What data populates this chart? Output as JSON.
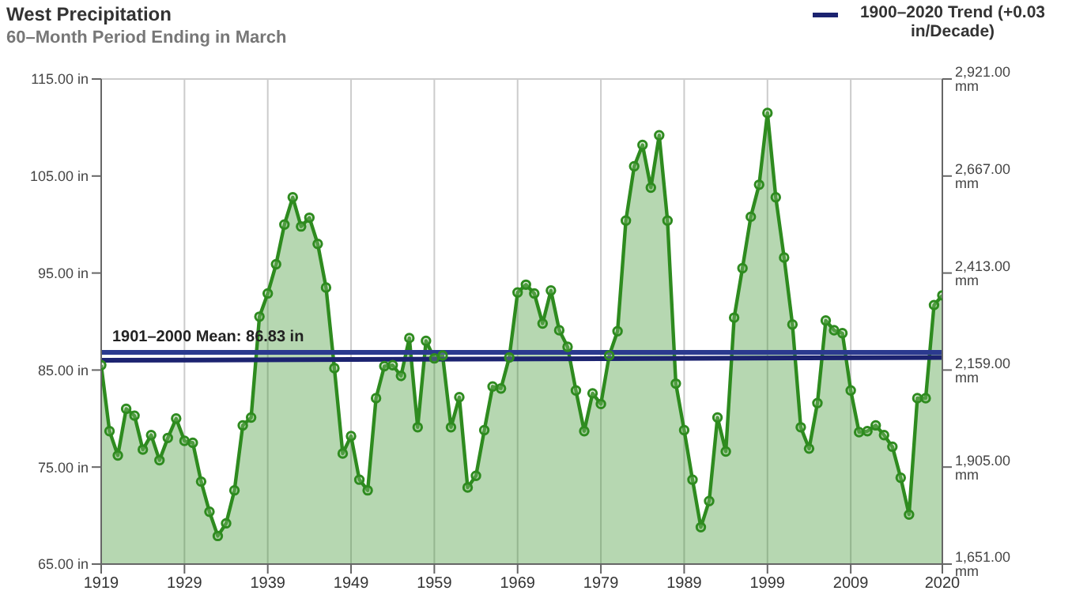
{
  "chart_data": {
    "type": "area",
    "title": "West Precipitation",
    "subtitle": "60–Month Period Ending in March",
    "x": [
      1919,
      1920,
      1921,
      1922,
      1923,
      1924,
      1925,
      1926,
      1927,
      1928,
      1929,
      1930,
      1931,
      1932,
      1933,
      1934,
      1935,
      1936,
      1937,
      1938,
      1939,
      1940,
      1941,
      1942,
      1943,
      1944,
      1945,
      1946,
      1947,
      1948,
      1949,
      1950,
      1951,
      1952,
      1953,
      1954,
      1955,
      1956,
      1957,
      1958,
      1959,
      1960,
      1961,
      1962,
      1963,
      1964,
      1965,
      1966,
      1967,
      1968,
      1969,
      1970,
      1971,
      1972,
      1973,
      1974,
      1975,
      1976,
      1977,
      1978,
      1979,
      1980,
      1981,
      1982,
      1983,
      1984,
      1985,
      1986,
      1987,
      1988,
      1989,
      1990,
      1991,
      1992,
      1993,
      1994,
      1995,
      1996,
      1997,
      1998,
      1999,
      2000,
      2001,
      2002,
      2003,
      2004,
      2005,
      2006,
      2007,
      2008,
      2009,
      2010,
      2011,
      2012,
      2013,
      2014,
      2015,
      2016,
      2017,
      2018,
      2019,
      2020
    ],
    "series": [
      {
        "color": "#2e8b1f",
        "marker": "circle",
        "values": [
          85.5,
          78.7,
          76.2,
          81,
          80.3,
          76.8,
          78.3,
          75.7,
          78,
          80,
          77.7,
          77.5,
          73.5,
          70.4,
          67.9,
          69.2,
          72.6,
          79.3,
          80.1,
          90.5,
          92.9,
          95.9,
          100,
          102.8,
          99.8,
          100.7,
          98,
          93.5,
          85.2,
          76.4,
          78.2,
          73.7,
          72.6,
          82.1,
          85.4,
          85.5,
          84.4,
          88.3,
          79.1,
          88,
          86.2,
          86.5,
          79.1,
          82.2,
          72.9,
          74.1,
          78.8,
          83.3,
          83.1,
          86.3,
          93,
          93.8,
          92.9,
          89.8,
          93.2,
          89.1,
          87.4,
          82.9,
          78.7,
          82.6,
          81.5,
          86.5,
          89,
          100.4,
          106,
          108.2,
          103.8,
          109.2,
          100.4,
          83.6,
          78.8,
          73.7,
          68.8,
          71.5,
          80.1,
          76.6,
          90.4,
          95.5,
          100.8,
          104.1,
          111.5,
          102.8,
          96.6,
          89.7,
          79.1,
          76.9,
          81.6,
          90.1,
          89.1,
          88.8,
          82.9,
          78.6,
          78.7,
          79.3,
          78.3,
          77.1,
          73.9,
          70.1,
          82.1,
          82.1,
          91.7,
          92.7
        ]
      },
      {
        "type": "line",
        "name": "1900–2020 Trend (+0.03 in/Decade)",
        "color": "#1c2370",
        "marker": "none",
        "x": [
          1919,
          2020
        ],
        "values": [
          86.0,
          86.3
        ]
      }
    ],
    "xlim": [
      1919,
      2020
    ],
    "xticks": [
      1919,
      1929,
      1939,
      1949,
      1959,
      1969,
      1979,
      1989,
      1999,
      2009,
      2020
    ],
    "ylim": [
      65,
      115
    ],
    "yticks": [
      {
        "value": 65,
        "label": "65.00 in"
      },
      {
        "value": 75,
        "label": "75.00 in"
      },
      {
        "value": 85,
        "label": "85.00 in"
      },
      {
        "value": 95,
        "label": "95.00 in"
      },
      {
        "value": 105,
        "label": "105.00 in"
      },
      {
        "value": 115,
        "label": "115.00 in"
      }
    ],
    "y2lim": [
      1651,
      2921
    ],
    "y2ticks": [
      {
        "value": 1651,
        "label": "1,651.00 mm"
      },
      {
        "value": 1905,
        "label": "1,905.00 mm"
      },
      {
        "value": 2159,
        "label": "2,159.00 mm"
      },
      {
        "value": 2413,
        "label": "2,413.00 mm"
      },
      {
        "value": 2667,
        "label": "2,667.00 mm"
      },
      {
        "value": 2921,
        "label": "2,921.00 mm"
      }
    ],
    "ref_lines": [
      {
        "axis": "y",
        "value": 86.83,
        "label": "1901–2000 Mean: 86.83 in",
        "color": "#2b3a8f"
      }
    ],
    "grid": true,
    "legend": "top right"
  }
}
